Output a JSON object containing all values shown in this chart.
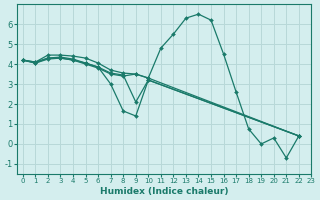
{
  "title": "",
  "xlabel": "Humidex (Indice chaleur)",
  "ylabel": "",
  "bg_color": "#d4eeee",
  "grid_color": "#b8d8d8",
  "line_color": "#1a7a6a",
  "marker_color": "#1a7a6a",
  "xlim": [
    -0.5,
    23
  ],
  "ylim": [
    -1.5,
    7.0
  ],
  "xticks": [
    0,
    1,
    2,
    3,
    4,
    5,
    6,
    7,
    8,
    9,
    10,
    11,
    12,
    13,
    14,
    15,
    16,
    17,
    18,
    19,
    20,
    21,
    22,
    23
  ],
  "yticks": [
    -1,
    0,
    1,
    2,
    3,
    4,
    5,
    6
  ],
  "series": [
    {
      "x": [
        0,
        1,
        2,
        3,
        4,
        5,
        6,
        7,
        8,
        9,
        10,
        11,
        12,
        13,
        14,
        15,
        16,
        17,
        18,
        19,
        20,
        21,
        22
      ],
      "y": [
        4.2,
        4.1,
        4.45,
        4.45,
        4.4,
        4.3,
        4.05,
        3.7,
        3.55,
        3.5,
        3.3,
        4.8,
        5.5,
        6.3,
        6.5,
        6.2,
        4.5,
        2.6,
        0.75,
        0.0,
        0.3,
        -0.7,
        0.4
      ]
    },
    {
      "x": [
        0,
        1,
        2,
        3,
        4,
        5,
        6,
        7,
        8,
        9,
        10,
        22
      ],
      "y": [
        4.2,
        4.1,
        4.3,
        4.3,
        4.2,
        4.05,
        3.85,
        3.0,
        1.65,
        1.4,
        3.2,
        0.4
      ]
    },
    {
      "x": [
        0,
        1,
        2,
        3,
        4,
        5,
        6,
        7,
        8,
        9,
        10,
        22
      ],
      "y": [
        4.2,
        4.05,
        4.3,
        4.35,
        4.25,
        4.05,
        3.85,
        3.55,
        3.45,
        2.1,
        3.2,
        0.4
      ]
    },
    {
      "x": [
        0,
        1,
        2,
        3,
        4,
        5,
        6,
        7,
        8,
        9,
        10,
        22
      ],
      "y": [
        4.2,
        4.05,
        4.25,
        4.3,
        4.2,
        4.0,
        3.8,
        3.5,
        3.4,
        3.5,
        3.3,
        0.4
      ]
    }
  ]
}
